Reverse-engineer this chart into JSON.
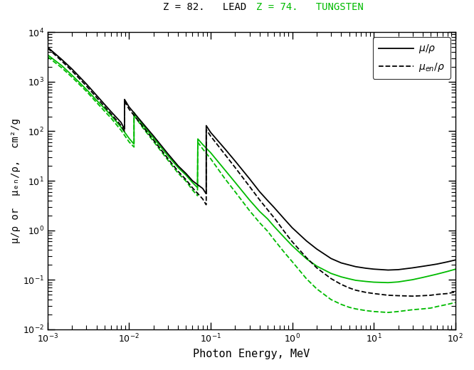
{
  "title_lead": "Z = 82.   LEAD",
  "title_tungsten": "Z = 74.   TUNGSTEN",
  "xlabel": "Photon Energy, MeV",
  "ylabel": "μ/ρ or  μₑₙ/ρ,  cm²/g",
  "xlim": [
    0.001,
    100.0
  ],
  "ylim": [
    0.01,
    10000.0
  ],
  "background_color": "#ffffff",
  "lead_color": "#000000",
  "tungsten_color": "#00bb00",
  "title_lead_color": "#000000",
  "title_tungsten_color": "#00bb00",
  "pb_mu_x": [
    0.001,
    0.0015,
    0.002,
    0.003,
    0.004,
    0.005,
    0.006,
    0.008,
    0.0088,
    0.0088,
    0.01,
    0.015,
    0.02,
    0.03,
    0.04,
    0.05,
    0.06,
    0.08,
    0.088,
    0.0884,
    0.0884,
    0.1,
    0.15,
    0.2,
    0.3,
    0.4,
    0.5,
    0.6,
    0.8,
    1.0,
    1.5,
    2.0,
    3.0,
    4.0,
    5.0,
    6.0,
    8.0,
    10.0,
    15.0,
    20.0,
    30.0,
    40.0,
    50.0,
    60.0,
    80.0,
    100.0
  ],
  "pb_mu_y": [
    5000,
    2800,
    1800,
    900,
    530,
    350,
    250,
    150,
    110,
    440,
    310,
    140,
    80,
    35,
    20,
    14,
    10,
    7.0,
    5.5,
    5.5,
    130,
    95,
    44,
    25,
    11.0,
    6.0,
    4.0,
    2.9,
    1.7,
    1.13,
    0.61,
    0.42,
    0.27,
    0.22,
    0.2,
    0.185,
    0.172,
    0.165,
    0.158,
    0.161,
    0.175,
    0.188,
    0.199,
    0.209,
    0.231,
    0.252
  ],
  "pb_mu_en_x": [
    0.001,
    0.0015,
    0.002,
    0.003,
    0.004,
    0.005,
    0.006,
    0.008,
    0.0088,
    0.0088,
    0.01,
    0.015,
    0.02,
    0.03,
    0.04,
    0.05,
    0.06,
    0.08,
    0.088,
    0.0884,
    0.0884,
    0.1,
    0.15,
    0.2,
    0.3,
    0.4,
    0.5,
    0.6,
    0.8,
    1.0,
    1.5,
    2.0,
    3.0,
    4.0,
    5.0,
    6.0,
    8.0,
    10.0,
    15.0,
    20.0,
    30.0,
    40.0,
    50.0,
    60.0,
    80.0,
    100.0
  ],
  "pb_mu_en_y": [
    4800,
    2600,
    1650,
    820,
    480,
    315,
    225,
    130,
    100,
    400,
    280,
    120,
    66,
    28,
    15.5,
    10.5,
    7.2,
    4.3,
    3.3,
    3.3,
    108,
    80,
    34,
    18.5,
    7.7,
    4.1,
    2.6,
    1.8,
    0.95,
    0.59,
    0.28,
    0.175,
    0.106,
    0.081,
    0.069,
    0.062,
    0.056,
    0.053,
    0.049,
    0.048,
    0.047,
    0.048,
    0.049,
    0.051,
    0.053,
    0.057
  ],
  "w_mu_x": [
    0.001,
    0.0015,
    0.002,
    0.003,
    0.004,
    0.005,
    0.006,
    0.008,
    0.01,
    0.0115,
    0.0115,
    0.012,
    0.015,
    0.02,
    0.03,
    0.04,
    0.05,
    0.06,
    0.069,
    0.069,
    0.0697,
    0.08,
    0.1,
    0.15,
    0.2,
    0.3,
    0.4,
    0.5,
    0.6,
    0.8,
    1.0,
    1.5,
    2.0,
    3.0,
    4.0,
    5.0,
    6.0,
    8.0,
    10.0,
    15.0,
    20.0,
    30.0,
    40.0,
    50.0,
    60.0,
    80.0,
    100.0
  ],
  "w_mu_y": [
    3500,
    2100,
    1350,
    700,
    420,
    290,
    210,
    120,
    72,
    55,
    240,
    215,
    130,
    73,
    32,
    18.5,
    13,
    9.2,
    7.3,
    7.3,
    70,
    54,
    37,
    16.5,
    9.3,
    4.1,
    2.4,
    1.7,
    1.2,
    0.72,
    0.49,
    0.266,
    0.19,
    0.135,
    0.115,
    0.105,
    0.098,
    0.093,
    0.09,
    0.088,
    0.091,
    0.101,
    0.112,
    0.122,
    0.131,
    0.148,
    0.164
  ],
  "w_mu_en_x": [
    0.001,
    0.0015,
    0.002,
    0.003,
    0.004,
    0.005,
    0.006,
    0.008,
    0.01,
    0.0115,
    0.0115,
    0.012,
    0.015,
    0.02,
    0.03,
    0.04,
    0.05,
    0.06,
    0.069,
    0.069,
    0.0697,
    0.08,
    0.1,
    0.15,
    0.2,
    0.3,
    0.4,
    0.5,
    0.6,
    0.8,
    1.0,
    1.5,
    2.0,
    3.0,
    4.0,
    5.0,
    6.0,
    8.0,
    10.0,
    15.0,
    20.0,
    30.0,
    40.0,
    50.0,
    60.0,
    80.0,
    100.0
  ],
  "w_mu_en_y": [
    3200,
    1900,
    1230,
    640,
    380,
    255,
    185,
    104,
    61,
    48,
    212,
    190,
    113,
    62,
    26,
    14.2,
    9.8,
    6.5,
    5.0,
    5.0,
    60,
    44,
    28,
    11,
    6.0,
    2.5,
    1.42,
    0.96,
    0.65,
    0.36,
    0.234,
    0.105,
    0.066,
    0.04,
    0.032,
    0.028,
    0.026,
    0.024,
    0.023,
    0.022,
    0.023,
    0.025,
    0.026,
    0.027,
    0.029,
    0.032,
    0.035
  ]
}
